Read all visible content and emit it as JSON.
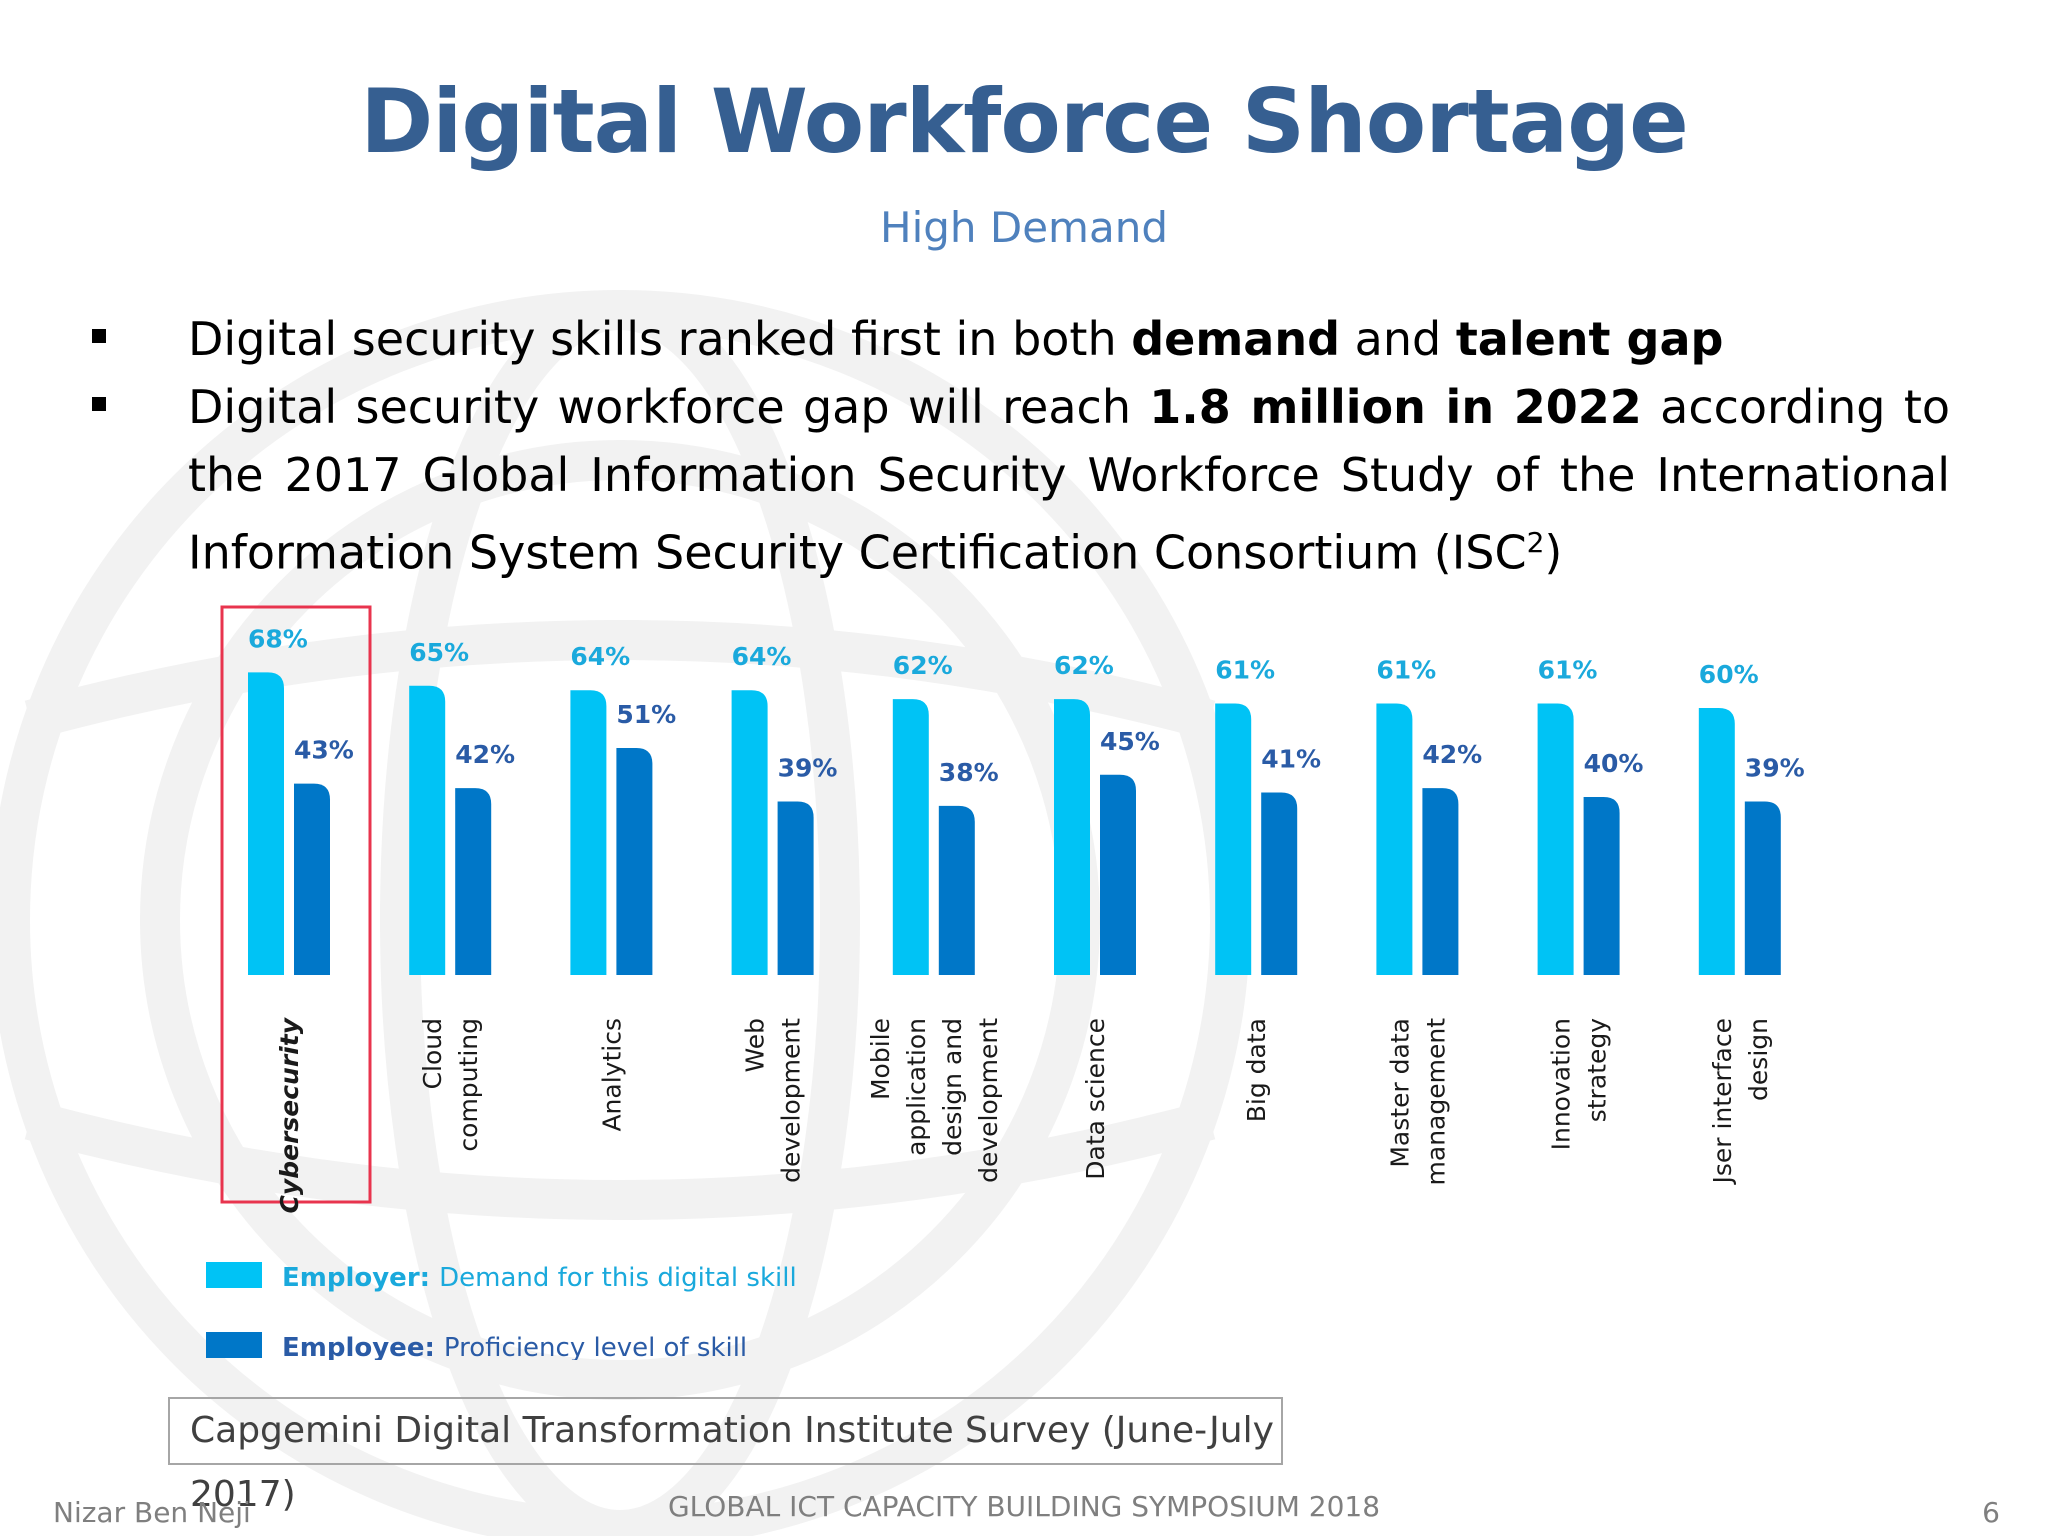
{
  "slide": {
    "title": "Digital Workforce Shortage",
    "subtitle": "High Demand",
    "bullets": [
      {
        "pre": "Digital security skills ranked first in both ",
        "b1": "demand",
        "mid": " and ",
        "b2": "talent gap",
        "post": ""
      },
      {
        "pre": "Digital security workforce gap will reach ",
        "b1": "1.8 million in 2022",
        "mid": " according to the 2017 Global Information Security Workforce Study of the International Information System Security Certification Consortium (ISC",
        "sup": "2",
        "post": ")"
      }
    ],
    "source": "Capgemini Digital Transformation Institute Survey (June-July 2017)",
    "footer_left": "Nizar Ben Neji",
    "footer_center": "GLOBAL ICT CAPACITY BUILDING SYMPOSIUM 2018",
    "page_number": "6"
  },
  "chart_data": {
    "type": "bar",
    "categories": [
      [
        "Cybersecurity"
      ],
      [
        "Cloud",
        "computing"
      ],
      [
        "Analytics"
      ],
      [
        "Web",
        "development"
      ],
      [
        "Mobile",
        "application",
        "design and",
        "development"
      ],
      [
        "Data science"
      ],
      [
        "Big data"
      ],
      [
        "Master data",
        "management"
      ],
      [
        "Innovation",
        "strategy"
      ],
      [
        "Jser interface",
        "design"
      ]
    ],
    "series": [
      {
        "name": "Employer: Demand for this digital skill",
        "values": [
          68,
          65,
          64,
          64,
          62,
          62,
          61,
          61,
          61,
          60
        ],
        "labels": [
          "68%",
          "65%",
          "64%",
          "64%",
          "62%",
          "62%",
          "61%",
          "61%",
          "61%",
          "60%"
        ],
        "color": "#00c3f5",
        "label_color": "#1aa9dc"
      },
      {
        "name": "Employee: Proficiency level of skill",
        "values": [
          43,
          42,
          51,
          39,
          38,
          45,
          41,
          42,
          40,
          39
        ],
        "labels": [
          "43%",
          "42%",
          "51%",
          "39%",
          "38%",
          "45%",
          "41%",
          "42%",
          "40%",
          "39%"
        ],
        "color": "#0077c8",
        "label_color": "#2a5ba6"
      }
    ],
    "highlight_category": "Cybersecurity",
    "highlight_color": "#e8344e",
    "legend_position": "bottom-left",
    "grid": false
  },
  "colors": {
    "title": "#365f91",
    "subtitle": "#4f81bd"
  }
}
